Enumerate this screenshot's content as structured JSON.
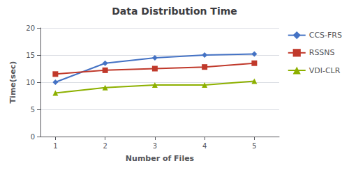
{
  "chart_data": {
    "type": "line",
    "title": "Data Distribution Time",
    "x_label": "Number of Files",
    "y_label": "Time(sec)",
    "x": [
      1,
      2,
      3,
      4,
      5
    ],
    "series": [
      {
        "name": "CCS-FRS",
        "color": "#4472C4",
        "marker": "diamond",
        "values": [
          10.0,
          13.5,
          14.5,
          15.0,
          15.2
        ]
      },
      {
        "name": "RSSNS",
        "color": "#C0392B",
        "marker": "square",
        "values": [
          11.5,
          12.2,
          12.5,
          12.8,
          13.5
        ]
      },
      {
        "name": "VDI-CLR",
        "color": "#8DB000",
        "marker": "triangle",
        "values": [
          8.0,
          9.0,
          9.5,
          9.5,
          10.2
        ]
      }
    ],
    "xlim": [
      0.7,
      5.5
    ],
    "xticks": [
      1,
      2,
      3,
      4,
      5
    ],
    "ylim": [
      0,
      20
    ],
    "yticks": [
      0,
      5,
      10,
      15,
      20
    ],
    "grid": true,
    "legend": "right"
  }
}
